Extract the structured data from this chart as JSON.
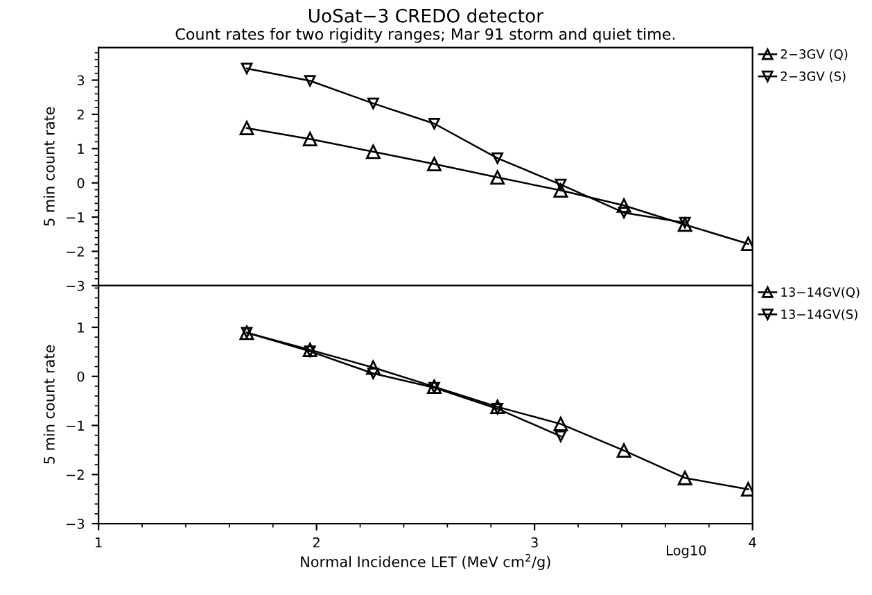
{
  "chart_data": [
    {
      "type": "line",
      "title": "UoSat−3 CREDO detector",
      "subtitle": "Count rates for two rigidity ranges; Mar 91 storm and quiet time.",
      "ylabel": "5 min count rate",
      "xlim": [
        1,
        4
      ],
      "xticks": [
        1,
        2,
        3,
        4
      ],
      "ylim": [
        -3,
        3.95
      ],
      "yticks": [
        -3,
        -2,
        -1,
        0,
        1,
        2,
        3
      ],
      "tick_labels": "y",
      "grid": false,
      "legend": "right",
      "line_style": "solid",
      "series": [
        {
          "name": "2−3GV (Q)",
          "color": "#000000",
          "marker": "triangle",
          "x": [
            1.68,
            1.97,
            2.26,
            2.54,
            2.83,
            3.12,
            3.41,
            3.69,
            3.98
          ],
          "values": [
            1.6,
            1.28,
            0.91,
            0.55,
            0.16,
            -0.22,
            -0.66,
            -1.22,
            -1.78
          ]
        },
        {
          "name": "2−3GV (S)",
          "color": "#000000",
          "marker": "triangle_down",
          "x": [
            1.68,
            1.97,
            2.26,
            2.54,
            2.83,
            3.12,
            3.41,
            3.69
          ],
          "values": [
            3.34,
            2.98,
            2.32,
            1.73,
            0.72,
            -0.05,
            -0.87,
            -1.16
          ]
        }
      ]
    },
    {
      "type": "line",
      "xlabel": "Normal Incidence LET (MeV cm$^{2}$/g)",
      "ylabel": "5 min count rate",
      "xlim": [
        1,
        4
      ],
      "xticks": [
        1,
        2,
        3,
        4
      ],
      "ylim": [
        -3,
        1.85
      ],
      "yticks": [
        -3,
        -2,
        -1,
        0,
        1
      ],
      "grid": false,
      "legend": "right",
      "line_style": "solid",
      "annotations": [
        "Log10"
      ],
      "series": [
        {
          "name": "13−14GV(Q)",
          "color": "#000000",
          "marker": "triangle",
          "x": [
            1.68,
            1.97,
            2.26,
            2.54,
            2.83,
            3.12,
            3.41,
            3.69,
            3.98
          ],
          "values": [
            0.89,
            0.54,
            0.18,
            -0.21,
            -0.62,
            -0.97,
            -1.51,
            -2.07,
            -2.3
          ]
        },
        {
          "name": "13−14GV(S)",
          "color": "#000000",
          "marker": "triangle_down",
          "x": [
            1.68,
            1.97,
            2.26,
            2.54,
            2.83,
            3.12
          ],
          "values": [
            0.89,
            0.51,
            0.06,
            -0.23,
            -0.66,
            -1.22
          ]
        }
      ]
    }
  ]
}
